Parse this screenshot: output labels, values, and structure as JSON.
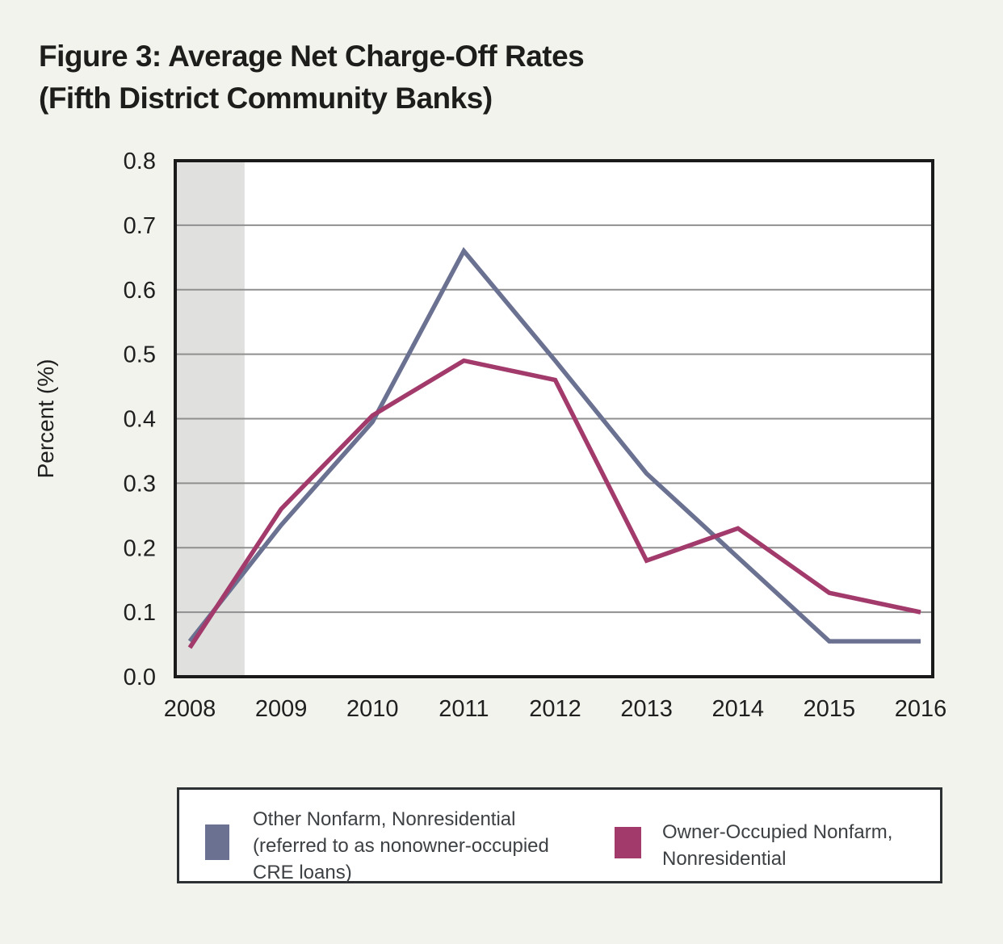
{
  "title": {
    "line1": "Figure 3: Average Net Charge-Off Rates",
    "line2": "(Fifth District Community Banks)"
  },
  "chart_data": {
    "type": "line",
    "x": [
      2008,
      2009,
      2010,
      2011,
      2012,
      2013,
      2014,
      2015,
      2016
    ],
    "series": [
      {
        "name": "Other Nonfarm, Nonresidential (referred to as nonowner-occupied CRE loans)",
        "color": "#6a7191",
        "values": [
          0.055,
          0.235,
          0.395,
          0.66,
          0.49,
          0.315,
          0.185,
          0.055,
          0.055
        ]
      },
      {
        "name": "Owner-Occupied Nonfarm, Nonresidential",
        "color": "#a23a6b",
        "values": [
          0.045,
          0.26,
          0.405,
          0.49,
          0.46,
          0.18,
          0.23,
          0.13,
          0.1
        ]
      }
    ],
    "xlabel": "",
    "ylabel": "Percent (%)",
    "ylim": [
      0.0,
      0.8
    ],
    "ytick_step": 0.1,
    "y_tick_labels": [
      "0.0",
      "0.1",
      "0.2",
      "0.3",
      "0.4",
      "0.5",
      "0.6",
      "0.7",
      "0.8"
    ],
    "x_tick_labels": [
      "2008",
      "2009",
      "2010",
      "2011",
      "2012",
      "2013",
      "2014",
      "2015",
      "2016"
    ],
    "grid": true,
    "legend_position": "bottom",
    "shaded_band": {
      "x_start_year": 2008,
      "x_end_year": 2008.6,
      "color": "#e0e1df"
    }
  },
  "legend": {
    "entries": [
      {
        "lines": [
          "Other Nonfarm, Nonresidential",
          "(referred to as nonowner-occupied",
          "CRE loans)"
        ],
        "color": "#6a7191"
      },
      {
        "lines": [
          "Owner-Occupied Nonfarm,",
          "Nonresidential"
        ],
        "color": "#a23a6b"
      }
    ]
  },
  "style": {
    "background": "#f2f3ed",
    "plot_background": "#ffffff",
    "border_color": "#1a1a1a",
    "gridline_color": "#8f8f8f",
    "tick_label_color": "#1f1f1f"
  }
}
